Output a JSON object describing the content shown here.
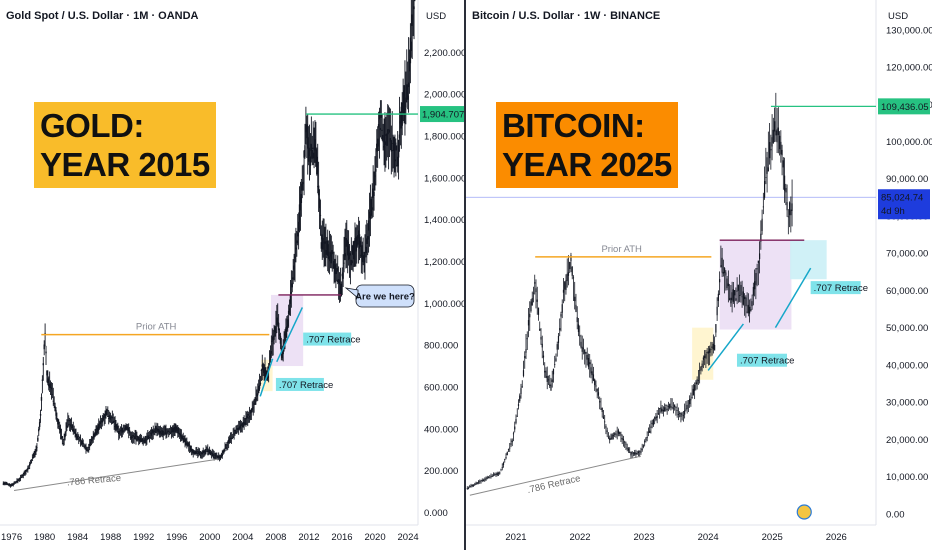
{
  "colors": {
    "up": "#131722",
    "orange_line": "#f5a623",
    "green_line": "#26c281",
    "purple_line": "#7b1f5a",
    "retrace_line": "#16a7c9",
    "gold_label_bg": "#f9bc2a",
    "btc_label_bg": "#fb8c00",
    "price_tag_green": "#26c281",
    "price_tag_blue": "#1e3cdd",
    "retrace_tag_bg": "#7fe3ea"
  },
  "chart_data": [
    {
      "type": "line",
      "title": "Gold Spot / U.S. Dollar · 1M · OANDA",
      "currency": "USD",
      "x_ticks": [
        "1976",
        "1980",
        "1984",
        "1988",
        "1992",
        "1996",
        "2000",
        "2004",
        "2008",
        "2012",
        "2016",
        "2020",
        "2024"
      ],
      "y_ticks": [
        "0.000",
        "200.000",
        "400.000",
        "600.000",
        "800.000",
        "1,000.000",
        "1,200.000",
        "1,400.000",
        "1,600.000",
        "1,800.000",
        "2,000.000",
        "2,200.000"
      ],
      "ylim": [
        -60,
        2450
      ],
      "xlim": [
        1974.6,
        2025.2
      ],
      "series": [
        {
          "x": [
            1975,
            1976,
            1977,
            1978,
            1979,
            1979.5,
            1980.05,
            1980.3,
            1980.8,
            1981.5,
            1982.3,
            1982.8,
            1983.2,
            1984,
            1985.2,
            1986,
            1987.5,
            1988.3,
            1989,
            1990,
            1990.5,
            1991,
            1992,
            1993,
            1993.5,
            1994,
            1995,
            1996,
            1997,
            1998,
            1999,
            1999.7,
            2000.5,
            2001.3,
            2002,
            2003,
            2004,
            2005,
            2006,
            2006.4,
            2007,
            2007.5,
            2008.2,
            2008.8,
            2009.5,
            2010,
            2010.8,
            2011.3,
            2011.7,
            2012,
            2012.7,
            2013,
            2013.5,
            2014,
            2015,
            2015.9,
            2016.5,
            2017,
            2018,
            2018.7,
            2019.5,
            2020,
            2020.6,
            2021,
            2021.5,
            2022,
            2022.8,
            2023,
            2023.5,
            2024,
            2024.5,
            2025
          ],
          "y": [
            140,
            130,
            160,
            210,
            300,
            450,
            850,
            640,
            600,
            450,
            330,
            440,
            420,
            360,
            300,
            370,
            480,
            440,
            380,
            410,
            360,
            360,
            340,
            380,
            400,
            380,
            385,
            400,
            340,
            290,
            280,
            300,
            270,
            260,
            320,
            380,
            420,
            480,
            600,
            700,
            650,
            800,
            920,
            750,
            930,
            1100,
            1400,
            1600,
            1860,
            1700,
            1760,
            1650,
            1300,
            1280,
            1200,
            1060,
            1300,
            1200,
            1320,
            1200,
            1450,
            1600,
            1900,
            1800,
            1800,
            1780,
            1680,
            1850,
            1950,
            2050,
            2350,
            2600
          ]
        }
      ],
      "annotations": {
        "big_label": "GOLD:\nYEAR 2015",
        "prior_ath": "Prior ATH",
        "prior_ath_value": 850,
        "ath_line_value": 1904.707,
        "price_tag": "1,904.707",
        "retrace_786": ".786 Retrace",
        "retrace_707_upper": ".707 Retrace",
        "retrace_707_lower": ".707 Retrace",
        "callout": "Are we here?"
      }
    },
    {
      "type": "line",
      "title": "Bitcoin / U.S. Dollar · 1W · BINANCE",
      "currency": "USD",
      "x_ticks": [
        "2021",
        "2022",
        "2023",
        "2024",
        "2025",
        "2026"
      ],
      "y_ticks": [
        "0.00",
        "10,000.00",
        "20,000.00",
        "30,000.00",
        "40,000.00",
        "50,000.00",
        "60,000.00",
        "70,000.00",
        "80,000.00",
        "90,000.00",
        "100,000.00",
        "110,000.00",
        "120,000.00",
        "130,000.00"
      ],
      "ylim": [
        -3000,
        138000
      ],
      "xlim": [
        2020.22,
        2026.62
      ],
      "series": [
        {
          "x": [
            2020.25,
            2020.5,
            2020.75,
            2020.95,
            2021.1,
            2021.2,
            2021.3,
            2021.45,
            2021.55,
            2021.65,
            2021.75,
            2021.86,
            2022.0,
            2022.15,
            2022.3,
            2022.45,
            2022.6,
            2022.8,
            2022.95,
            2023.1,
            2023.25,
            2023.45,
            2023.6,
            2023.8,
            2023.95,
            2024.1,
            2024.2,
            2024.35,
            2024.5,
            2024.65,
            2024.8,
            2024.9,
            2024.97,
            2025.05,
            2025.15,
            2025.25,
            2025.32
          ],
          "y": [
            7000,
            9200,
            11000,
            20000,
            35000,
            52000,
            62000,
            38000,
            34000,
            45000,
            60000,
            67500,
            46000,
            40000,
            31000,
            20000,
            22000,
            16000,
            16500,
            23000,
            28000,
            29000,
            26000,
            34000,
            42000,
            45000,
            68000,
            58000,
            60000,
            54000,
            68000,
            91000,
            98000,
            105000,
            96000,
            80000,
            84000
          ]
        }
      ],
      "annotations": {
        "big_label": "BITCOIN:\nYEAR 2025",
        "prior_ath": "Prior ATH",
        "prior_ath_value": 69000,
        "ath_line_value": 109436.05,
        "price_tag_ath": "109,436.05",
        "price_tag_current": "85,024.74",
        "countdown": "4d 9h",
        "current_value": 85024.74,
        "retrace_786": ".786 Retrace",
        "retrace_707_upper": ".707 Retrace",
        "retrace_707_lower": ".707 Retrace"
      }
    }
  ]
}
